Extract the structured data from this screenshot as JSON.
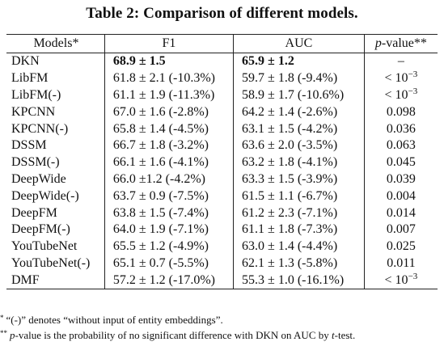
{
  "caption": "Table 2: Comparison of different models.",
  "table": {
    "headers": {
      "models": "Models*",
      "f1": "F1",
      "auc": "AUC",
      "p_label": "p",
      "p_suffix": "-value**"
    },
    "rows": [
      {
        "model": "DKN",
        "f1": "68.9 ± 1.5",
        "auc": "65.9 ± 1.2",
        "p_base": "–",
        "p_exp": ""
      },
      {
        "model": "LibFM",
        "f1": "61.8 ± 2.1 (-10.3%)",
        "auc": "59.7 ± 1.8 (-9.4%)",
        "p_base": "< 10",
        "p_exp": "−3"
      },
      {
        "model": "LibFM(-)",
        "f1": "61.1 ± 1.9 (-11.3%)",
        "auc": "58.9 ± 1.7 (-10.6%)",
        "p_base": "< 10",
        "p_exp": "−3"
      },
      {
        "model": "KPCNN",
        "f1": "67.0 ± 1.6 (-2.8%)",
        "auc": "64.2 ± 1.4 (-2.6%)",
        "p_base": "0.098",
        "p_exp": ""
      },
      {
        "model": "KPCNN(-)",
        "f1": "65.8 ± 1.4 (-4.5%)",
        "auc": "63.1 ± 1.5 (-4.2%)",
        "p_base": "0.036",
        "p_exp": ""
      },
      {
        "model": "DSSM",
        "f1": "66.7 ± 1.8 (-3.2%)",
        "auc": "63.6 ± 2.0 (-3.5%)",
        "p_base": "0.063",
        "p_exp": ""
      },
      {
        "model": "DSSM(-)",
        "f1": "66.1 ± 1.6 (-4.1%)",
        "auc": "63.2 ± 1.8 (-4.1%)",
        "p_base": "0.045",
        "p_exp": ""
      },
      {
        "model": "DeepWide",
        "f1": "66.0 ±1.2 (-4.2%)",
        "auc": "63.3 ± 1.5 (-3.9%)",
        "p_base": "0.039",
        "p_exp": ""
      },
      {
        "model": "DeepWide(-)",
        "f1": "63.7 ± 0.9 (-7.5%)",
        "auc": "61.5 ± 1.1 (-6.7%)",
        "p_base": "0.004",
        "p_exp": ""
      },
      {
        "model": "DeepFM",
        "f1": "63.8 ± 1.5 (-7.4%)",
        "auc": "61.2 ± 2.3 (-7.1%)",
        "p_base": "0.014",
        "p_exp": ""
      },
      {
        "model": "DeepFM(-)",
        "f1": "64.0 ± 1.9 (-7.1%)",
        "auc": "61.1 ± 1.8 (-7.3%)",
        "p_base": "0.007",
        "p_exp": ""
      },
      {
        "model": "YouTubeNet",
        "f1": "65.5 ± 1.2 (-4.9%)",
        "auc": "63.0 ± 1.4 (-4.4%)",
        "p_base": "0.025",
        "p_exp": ""
      },
      {
        "model": "YouTubeNet(-)",
        "f1": "65.1 ± 0.7 (-5.5%)",
        "auc": "62.1 ± 1.3 (-5.8%)",
        "p_base": "0.011",
        "p_exp": ""
      },
      {
        "model": "DMF",
        "f1": "57.2 ± 1.2 (-17.0%)",
        "auc": "55.3 ± 1.0 (-16.1%)",
        "p_base": "< 10",
        "p_exp": "−3"
      }
    ]
  },
  "notes": {
    "note1_mark": "*",
    "note1_text": "“(-)” denotes “without input of entity embeddings”.",
    "note2_mark": "**",
    "note2_p": "p",
    "note2_mid": "-value is the probability of no significant difference with DKN on AUC by ",
    "note2_t": "t",
    "note2_end": "-test."
  }
}
